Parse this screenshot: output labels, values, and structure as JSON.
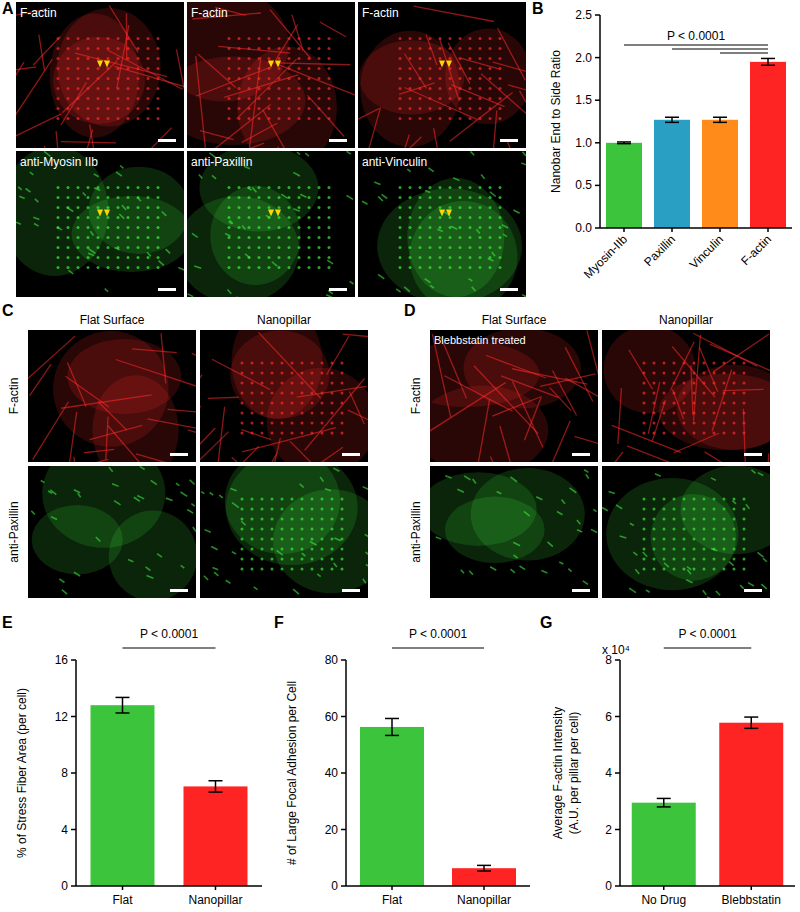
{
  "image_panels": [
    {
      "panel": "A",
      "labels": [
        "F-actin",
        "F-actin",
        "F-actin",
        "anti-Myosin IIb",
        "anti-Paxillin",
        "anti-Vinculin"
      ]
    },
    {
      "panel": "C",
      "columns": [
        "Flat Surface",
        "Nanopillar"
      ],
      "rows": [
        "F-actin",
        "anti-Paxillin"
      ]
    },
    {
      "panel": "D",
      "columns": [
        "Flat Surface",
        "Nanopillar"
      ],
      "rows": [
        "F-actin",
        "anti-Paxillin"
      ],
      "annotation": "Blebbstatin treated"
    }
  ],
  "chart_data": [
    {
      "panel": "B",
      "type": "bar",
      "ylabel": "Nanobar End to Side Ratio",
      "categories": [
        "Myosin-IIb",
        "Paxillin",
        "Vinculin",
        "F-actin"
      ],
      "values": [
        1.0,
        1.27,
        1.27,
        1.95
      ],
      "errors": [
        0.01,
        0.03,
        0.03,
        0.04
      ],
      "colors": [
        "#3cc43c",
        "#2a9fc4",
        "#ff8c1a",
        "#ff2424"
      ],
      "ylim": [
        0,
        2.5
      ],
      "yticks": [
        {
          "value": 0,
          "label": "0.0"
        },
        {
          "value": 0.5,
          "label": "0.5"
        },
        {
          "value": 1,
          "label": "1.0"
        },
        {
          "value": 1.5,
          "label": "1.5"
        },
        {
          "value": 2,
          "label": "2.0"
        },
        {
          "value": 2.5,
          "label": "2.5"
        }
      ],
      "annotations": [
        "P < 0.0001"
      ]
    },
    {
      "panel": "E",
      "type": "bar",
      "ylabel": "% of Stress Fiber Area (per cell)",
      "categories": [
        "Flat",
        "Nanopillar"
      ],
      "values": [
        12.8,
        7.05
      ],
      "errors": [
        0.55,
        0.4
      ],
      "colors": [
        "#3cc43c",
        "#ff2424"
      ],
      "ylim": [
        0,
        16
      ],
      "yticks": [
        0,
        4,
        8,
        12,
        16
      ],
      "annotations": [
        "P < 0.0001"
      ]
    },
    {
      "panel": "F",
      "type": "bar",
      "ylabel": "# of Large Focal Adhesion per Cell",
      "categories": [
        "Flat",
        "Nanopillar"
      ],
      "values": [
        56.3,
        6.3
      ],
      "errors": [
        3.0,
        1.0
      ],
      "colors": [
        "#3cc43c",
        "#ff2424"
      ],
      "ylim": [
        0,
        80
      ],
      "yticks": [
        0,
        20,
        40,
        60,
        80
      ],
      "annotations": [
        "P < 0.0001"
      ]
    },
    {
      "panel": "G",
      "type": "bar",
      "ylabel": [
        "Average F-actin Intensity",
        "(A.U. per pillar per cell)"
      ],
      "y_multiplier": "x 10⁴",
      "categories": [
        "No Drug",
        "Blebbstatin"
      ],
      "values": [
        2.95,
        5.78
      ],
      "errors": [
        0.15,
        0.2
      ],
      "colors": [
        "#3cc43c",
        "#ff2424"
      ],
      "ylim": [
        0,
        8
      ],
      "yticks": [
        0,
        2,
        4,
        6,
        8
      ],
      "annotations": [
        "P < 0.0001"
      ]
    }
  ]
}
